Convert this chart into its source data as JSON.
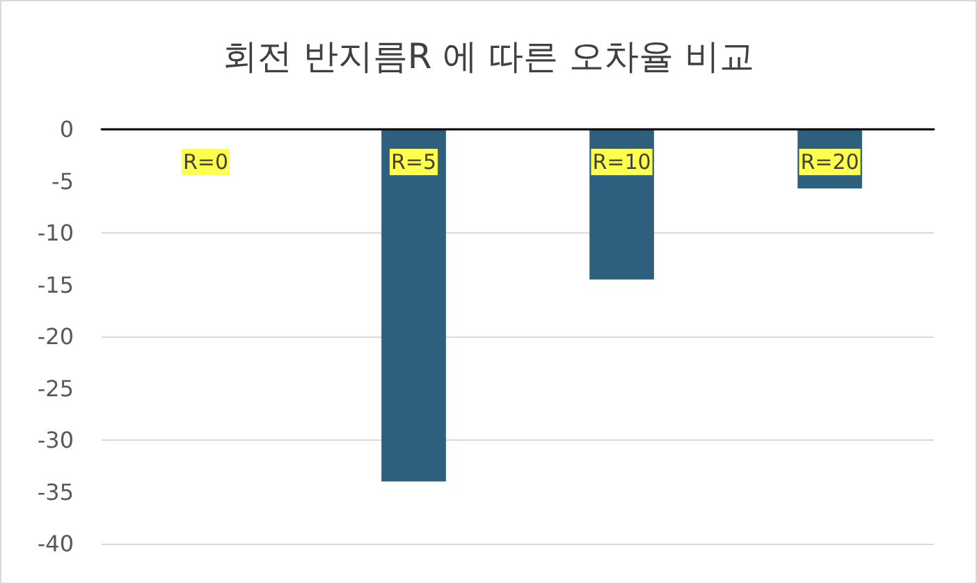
{
  "chart_data": {
    "type": "bar",
    "title": "회전 반지름R 에 따른 오차율 비교",
    "categories": [
      "R=0",
      "R=5",
      "R=10",
      "R=20"
    ],
    "values": [
      0,
      -34,
      -14.5,
      -5.7
    ],
    "color": "#2e5f7e",
    "ylim": [
      -40,
      0
    ],
    "yticks": [
      -40,
      -35,
      -30,
      -25,
      -20,
      -15,
      -10,
      -5,
      0
    ],
    "grid": "y"
  }
}
